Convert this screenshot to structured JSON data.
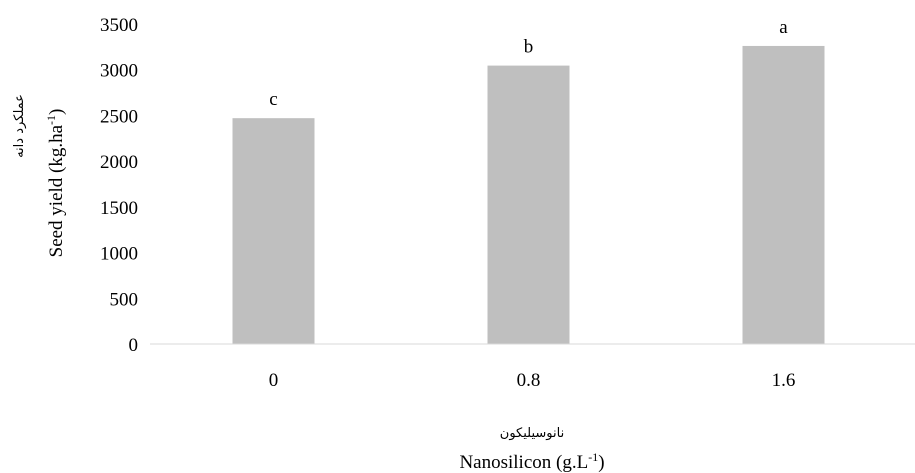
{
  "chart_data": {
    "type": "bar",
    "categories": [
      "0",
      "0.8",
      "1.6"
    ],
    "values": [
      2470,
      3045,
      3260
    ],
    "data_labels": [
      "c",
      "b",
      "a"
    ],
    "bar_color": "#bfbfbf",
    "ylim": [
      0,
      3500
    ],
    "yticks": [
      "0",
      "500",
      "1000",
      "1500",
      "2000",
      "2500",
      "3000",
      "3500"
    ],
    "xlabel_fa": "نانوسیلیکون",
    "xlabel": "Nanosilicon (g.L",
    "xlabel_sup": "-1",
    "xlabel_end": ")",
    "ylabel_fa": "عملکرد دانه",
    "ylabel": "Seed yield (kg.ha",
    "ylabel_sup": "-1",
    "ylabel_end": ")",
    "grid": false,
    "legend": "none"
  }
}
